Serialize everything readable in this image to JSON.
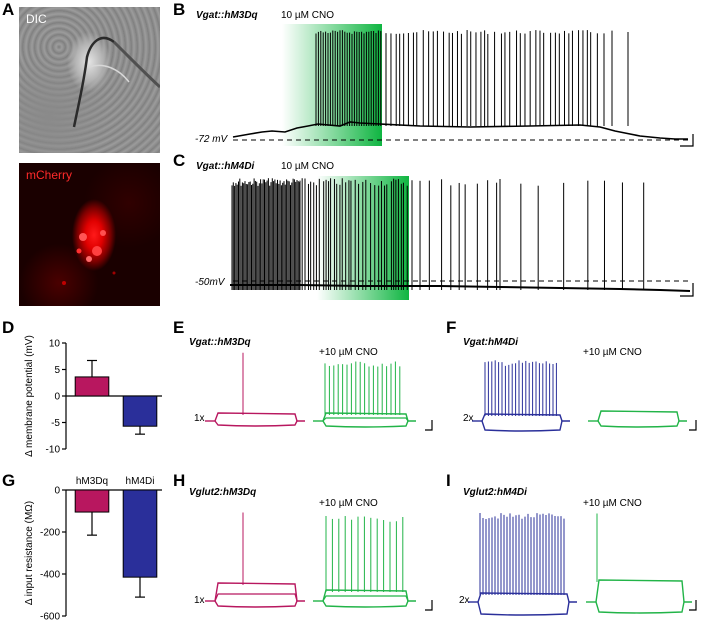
{
  "colors": {
    "hM3Dq": "#b8175f",
    "hM4Di": "#2a2f9a",
    "cno_trace": "#22b448",
    "cno_band": "#0fb541",
    "trace": "#000000",
    "dic_label": "#ffffff",
    "mcherry_label": "#ff2a2a"
  },
  "panels": {
    "A": {
      "label": "A",
      "dic_label": "DIC",
      "mcherry_label": "mCherry"
    },
    "B": {
      "label": "B",
      "genotype": "Vgat::hM3Dq",
      "cno_label": "10 µM CNO",
      "baseline_label": "-72 mV"
    },
    "C": {
      "label": "C",
      "genotype": "Vgat::hM4Di",
      "cno_label": "10 µM CNO",
      "baseline_label": "-50mV"
    },
    "D": {
      "label": "D",
      "ylabel": "Δ membrane potential (mV)"
    },
    "E": {
      "label": "E",
      "genotype": "Vgat::hM3Dq",
      "cno_label": "+10 µM CNO",
      "gain_label": "1x"
    },
    "F": {
      "label": "F",
      "genotype": "Vgat:hM4Di",
      "cno_label": "+10  µM CNO",
      "gain_label": "2x"
    },
    "G": {
      "label": "G",
      "ylabel": "Δ input resistance (MΩ)"
    },
    "H": {
      "label": "H",
      "genotype": "Vglut2:hM3Dq",
      "cno_label": "+10 µM CNO",
      "gain_label": "1x"
    },
    "I": {
      "label": "I",
      "genotype": "Vglut2:hM4Di",
      "cno_label": "+10 µM CNO",
      "gain_label": "2x"
    }
  },
  "chart_data": [
    {
      "id": "D",
      "type": "bar",
      "categories": [
        "hM3Dq",
        "hM4Di"
      ],
      "values": [
        3.6,
        -5.7
      ],
      "errors": [
        3.1,
        1.5
      ],
      "colors": [
        "#b8175f",
        "#2a2f9a"
      ],
      "ylabel": "Δ membrane potential (mV)",
      "ylim": [
        -10,
        10
      ],
      "yticks": [
        -10,
        -5,
        0,
        5,
        10
      ],
      "show_category_labels": false
    },
    {
      "id": "G",
      "type": "bar",
      "categories": [
        "hM3Dq",
        "hM4Di"
      ],
      "values": [
        -105,
        -415
      ],
      "errors": [
        110,
        95
      ],
      "colors": [
        "#b8175f",
        "#2a2f9a"
      ],
      "ylabel": "Δ input resistance (MΩ)",
      "ylim": [
        -600,
        0
      ],
      "yticks": [
        -600,
        -400,
        -200,
        0
      ],
      "show_category_labels": true
    }
  ]
}
